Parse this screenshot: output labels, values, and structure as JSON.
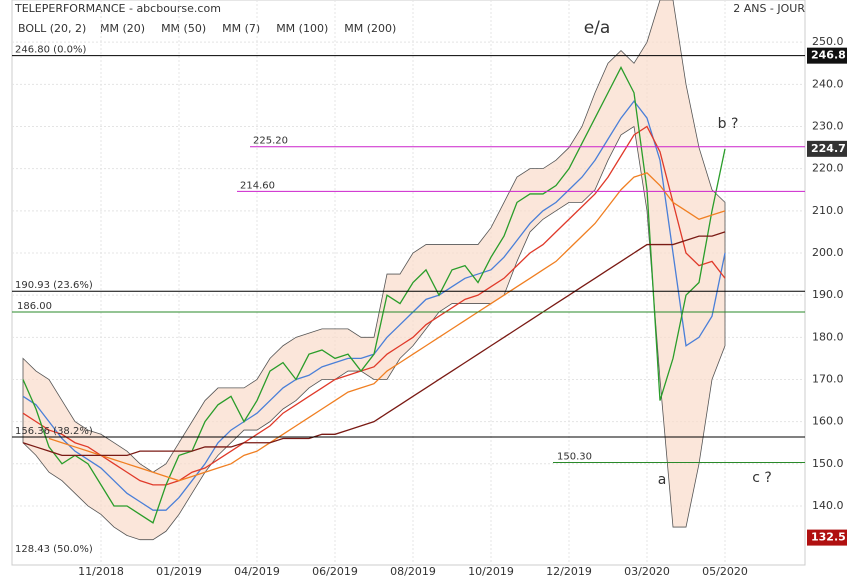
{
  "chart_data": {
    "type": "line",
    "title": "TELEPERFORMANCE - abcbourse.com",
    "subtitle": "2 ANS - JOUR",
    "categories": [
      null,
      null,
      null,
      null,
      null,
      null,
      "11/2018",
      null,
      null,
      null,
      null,
      null,
      "01/2019",
      null,
      null,
      null,
      null,
      null,
      "04/2019",
      null,
      null,
      null,
      null,
      null,
      "06/2019",
      null,
      null,
      null,
      null,
      null,
      "08/2019",
      null,
      null,
      null,
      null,
      null,
      "10/2019",
      null,
      null,
      null,
      null,
      null,
      "12/2019",
      null,
      null,
      null,
      null,
      null,
      "03/2020",
      null,
      null,
      null,
      null,
      null,
      "05/2020"
    ],
    "ylim": [
      126,
      260
    ],
    "yticks": [
      {
        "value": 140,
        "label": "140.0"
      },
      {
        "value": 150,
        "label": "150.0"
      },
      {
        "value": 160,
        "label": "160.0"
      },
      {
        "value": 170,
        "label": "170.0"
      },
      {
        "value": 180,
        "label": "180.0"
      },
      {
        "value": 190,
        "label": "190.0"
      },
      {
        "value": 200,
        "label": "200.0"
      },
      {
        "value": 210,
        "label": "210.0"
      },
      {
        "value": 220,
        "label": "220.0"
      },
      {
        "value": 230,
        "label": "230.0"
      },
      {
        "value": 240,
        "label": "240.0"
      },
      {
        "value": 250,
        "label": "250.0"
      }
    ],
    "grid": true,
    "band": {
      "name": "BOLL (20, 2)",
      "color": "#f9dccb",
      "upper": [
        175,
        172,
        170,
        165,
        160,
        158,
        157,
        155,
        153,
        150,
        148,
        150,
        155,
        160,
        165,
        168,
        168,
        168,
        170,
        175,
        178,
        180,
        181,
        182,
        182,
        182,
        180,
        180,
        195,
        195,
        200,
        202,
        202,
        202,
        202,
        202,
        206,
        212,
        218,
        220,
        220,
        222,
        225,
        230,
        238,
        245,
        248,
        245,
        250,
        260,
        260,
        240,
        225,
        215,
        212
      ],
      "lower": [
        155,
        152,
        148,
        146,
        143,
        140,
        138,
        135,
        133,
        132,
        132,
        134,
        138,
        143,
        148,
        152,
        155,
        158,
        158,
        160,
        163,
        165,
        168,
        170,
        170,
        172,
        172,
        170,
        170,
        175,
        178,
        182,
        186,
        188,
        188,
        188,
        188,
        190,
        198,
        205,
        208,
        210,
        212,
        212,
        215,
        222,
        228,
        230,
        210,
        170,
        135,
        135,
        150,
        170,
        178
      ]
    },
    "series": [
      {
        "name": "MM (20)",
        "color": "#4a7fd8",
        "values": [
          166,
          164,
          160,
          156,
          153,
          151,
          149,
          146,
          143,
          141,
          139,
          139,
          142,
          146,
          150,
          155,
          158,
          160,
          162,
          165,
          168,
          170,
          171,
          173,
          174,
          175,
          175,
          176,
          180,
          183,
          186,
          189,
          190,
          192,
          194,
          195,
          196,
          199,
          203,
          207,
          210,
          212,
          215,
          218,
          222,
          227,
          232,
          236,
          232,
          222,
          200,
          178,
          180,
          185,
          200
        ]
      },
      {
        "name": "MM (50)",
        "color": "#e03a2a",
        "values": [
          162,
          160,
          158,
          157,
          155,
          154,
          152,
          150,
          148,
          146,
          145,
          145,
          146,
          148,
          149,
          151,
          153,
          155,
          157,
          159,
          162,
          164,
          166,
          168,
          170,
          171,
          172,
          173,
          176,
          178,
          180,
          183,
          185,
          187,
          189,
          190,
          192,
          194,
          197,
          200,
          202,
          205,
          208,
          211,
          214,
          218,
          223,
          228,
          230,
          224,
          212,
          200,
          197,
          198,
          194
        ]
      },
      {
        "name": "MM (7)",
        "color": "#2a9d2a",
        "values": [
          170,
          163,
          154,
          150,
          152,
          150,
          145,
          140,
          140,
          138,
          136,
          145,
          152,
          153,
          160,
          164,
          166,
          160,
          165,
          172,
          174,
          170,
          176,
          177,
          175,
          176,
          172,
          176,
          190,
          188,
          193,
          196,
          190,
          196,
          197,
          193,
          199,
          204,
          212,
          214,
          214,
          216,
          220,
          226,
          232,
          238,
          244,
          238,
          215,
          165,
          175,
          190,
          193,
          210,
          224.7
        ]
      },
      {
        "name": "MM (100)",
        "color": "#f07f22",
        "values": [
          null,
          null,
          156,
          155,
          154,
          153,
          152,
          151,
          150,
          149,
          148,
          147,
          146,
          147,
          148,
          149,
          150,
          152,
          153,
          155,
          157,
          159,
          161,
          163,
          165,
          167,
          168,
          169,
          172,
          174,
          176,
          178,
          180,
          182,
          184,
          186,
          188,
          190,
          192,
          194,
          196,
          198,
          201,
          204,
          207,
          211,
          215,
          218,
          219,
          216,
          212,
          210,
          208,
          209,
          210
        ]
      },
      {
        "name": "MM (200)",
        "color": "#7a1a14",
        "values": [
          155,
          154,
          153,
          152,
          152,
          152,
          152,
          152,
          152,
          153,
          153,
          153,
          153,
          153,
          154,
          154,
          154,
          155,
          155,
          155,
          156,
          156,
          156,
          157,
          157,
          158,
          159,
          160,
          162,
          164,
          166,
          168,
          170,
          172,
          174,
          176,
          178,
          180,
          182,
          184,
          186,
          188,
          190,
          192,
          194,
          196,
          198,
          200,
          202,
          202,
          202,
          203,
          204,
          204,
          205
        ]
      }
    ],
    "levels": [
      {
        "value": 246.8,
        "label": "246.80 (0.0%)",
        "color": "#000000"
      },
      {
        "value": 225.2,
        "label": "225.20",
        "color": "#cc22cc"
      },
      {
        "value": 214.6,
        "label": "214.60",
        "color": "#cc22cc"
      },
      {
        "value": 190.93,
        "label": "190.93 (23.6%)",
        "color": "#000000"
      },
      {
        "value": 186,
        "label": "186.00",
        "color": "#2a8a2a"
      },
      {
        "value": 156.36,
        "label": "156.36 (38.2%)",
        "color": "#000000"
      },
      {
        "value": 150.3,
        "label": "150.30",
        "color": "#2a8a2a"
      },
      {
        "value": 128.43,
        "label": "128.43 (50.0%)",
        "color": "#000000"
      }
    ],
    "price_tags": [
      {
        "value": 246.8,
        "color": "#111111"
      },
      {
        "value": 224.7,
        "color": "#333333"
      },
      {
        "value": 132.5,
        "color": "#b01010"
      }
    ],
    "annotations": [
      "e/a",
      "b ?",
      "a",
      "c ?"
    ]
  }
}
